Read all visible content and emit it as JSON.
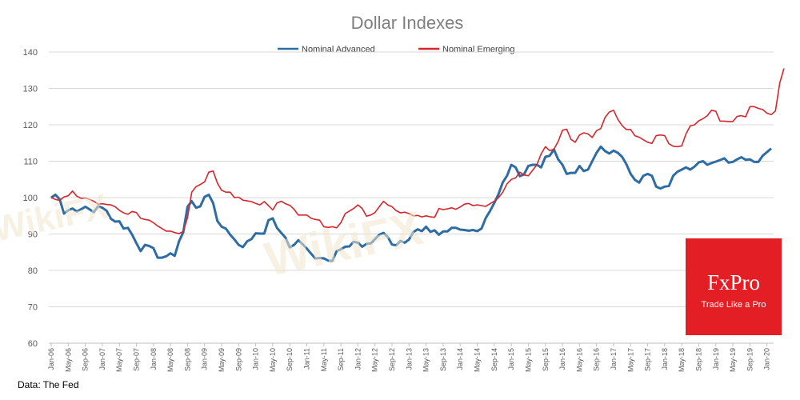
{
  "source_note": "Data: The Fed",
  "brand": {
    "logo_text": "FxPro",
    "tagline": "Trade Like a Pro",
    "color": "#e31e24"
  },
  "watermark": {
    "text": "WikiFX"
  },
  "chart_data": {
    "type": "line",
    "title": "Dollar Indexes",
    "xlabel": "",
    "ylabel": "",
    "ylim": [
      60,
      140
    ],
    "yticks": [
      60,
      70,
      80,
      90,
      100,
      110,
      120,
      130,
      140
    ],
    "grid": true,
    "legend": "top-center",
    "x_tick_labels": [
      "Jan-06",
      "May-06",
      "Sep-06",
      "Jan-07",
      "May-07",
      "Sep-07",
      "Jan-08",
      "May-08",
      "Sep-08",
      "Jan-09",
      "May-09",
      "Sep-09",
      "Jan-10",
      "May-10",
      "Sep-10",
      "Jan-11",
      "May-11",
      "Sep-11",
      "Jan-12",
      "May-12",
      "Sep-12",
      "Jan-13",
      "May-13",
      "Sep-13",
      "Jan-14",
      "May-14",
      "Sep-14",
      "Jan-15",
      "May-15",
      "Sep-15",
      "Jan-16",
      "May-16",
      "Sep-16",
      "Jan-17",
      "May-17",
      "Sep-17",
      "Jan-18",
      "May-18",
      "Sep-18",
      "Jan-19",
      "May-19",
      "Sep-19",
      "Jan-20"
    ],
    "series": [
      {
        "name": "Nominal Advanced",
        "color": "#2e6ca4",
        "values": [
          100,
          100.8,
          99.5,
          95.6,
          96.5,
          97.0,
          96.2,
          96.8,
          97.5,
          96.8,
          96.0,
          97.6,
          97.2,
          96.4,
          94.2,
          93.4,
          93.5,
          91.5,
          91.7,
          89.8,
          87.5,
          85.3,
          87.0,
          86.7,
          86.1,
          83.5,
          83.5,
          83.9,
          84.7,
          84.0,
          88.0,
          90.5,
          97.5,
          99.0,
          97.2,
          97.6,
          100.2,
          100.8,
          98.5,
          93.6,
          92.0,
          91.5,
          89.8,
          88.5,
          87.0,
          86.4,
          88.0,
          88.6,
          90.2,
          90.1,
          90.1,
          93.8,
          94.3,
          91.7,
          90.3,
          89.0,
          86.3,
          87.0,
          88.3,
          87.2,
          86.0,
          84.6,
          83.3,
          83.4,
          83.3,
          82.7,
          82.6,
          85.3,
          85.8,
          86.5,
          86.6,
          87.9,
          87.6,
          86.5,
          87.3,
          87.4,
          88.6,
          89.8,
          90.3,
          89.2,
          87.1,
          86.9,
          88.1,
          87.6,
          88.5,
          90.5,
          91.3,
          90.8,
          92.0,
          90.6,
          91.0,
          89.8,
          90.7,
          90.7,
          91.7,
          91.7,
          91.2,
          91.1,
          90.9,
          91.1,
          90.8,
          91.5,
          94.4,
          96.3,
          98.5,
          101.0,
          104.2,
          106.0,
          109.0,
          108.3,
          105.9,
          106.4,
          108.7,
          109.0,
          109.0,
          108.3,
          111.2,
          111.5,
          113.2,
          110.5,
          109.0,
          106.5,
          106.8,
          106.8,
          108.7,
          107.3,
          107.7,
          110.0,
          112.3,
          114.0,
          112.8,
          112.1,
          112.9,
          112.3,
          111.2,
          109.2,
          106.5,
          104.9,
          104.1,
          106.0,
          106.5,
          106.0,
          103.0,
          102.5,
          103.0,
          103.2,
          106.0,
          107.1,
          107.7,
          108.3,
          107.7,
          108.5,
          109.7,
          110.0,
          109.0,
          109.5,
          109.9,
          110.3,
          110.8,
          109.6,
          109.8,
          110.5,
          111.1,
          110.4,
          110.5,
          109.8,
          109.8,
          111.5,
          112.5,
          113.5
        ]
      },
      {
        "name": "Nominal Emerging",
        "color": "#d7262e",
        "values": [
          100,
          99.5,
          99.2,
          100.2,
          100.5,
          101.8,
          100.4,
          99.8,
          99.9,
          99.5,
          99.0,
          98.2,
          98.3,
          98.1,
          98.0,
          97.5,
          96.5,
          95.8,
          95.4,
          96.2,
          95.9,
          94.3,
          94.0,
          93.8,
          93.1,
          92.2,
          91.5,
          90.8,
          90.8,
          90.4,
          90.1,
          90.7,
          94.5,
          101.5,
          103.0,
          103.6,
          104.3,
          107.0,
          107.3,
          104.0,
          102.0,
          101.5,
          101.5,
          100.0,
          100.1,
          99.3,
          99.1,
          98.9,
          98.4,
          98.0,
          98.9,
          97.8,
          96.6,
          98.5,
          99.0,
          98.3,
          97.9,
          96.8,
          95.2,
          95.2,
          95.2,
          94.3,
          94.0,
          93.8,
          92.0,
          91.8,
          92.0,
          91.7,
          93.1,
          95.6,
          96.3,
          97.0,
          98.0,
          97.0,
          94.9,
          95.2,
          95.9,
          97.5,
          99.0,
          98.0,
          97.5,
          96.4,
          95.8,
          96.0,
          95.6,
          95.0,
          95.1,
          94.7,
          95.0,
          94.7,
          94.6,
          97.0,
          96.7,
          96.9,
          97.2,
          96.8,
          97.4,
          98.2,
          98.4,
          97.8,
          98.0,
          97.8,
          97.6,
          98.3,
          99.0,
          100.0,
          101.5,
          103.8,
          105.0,
          105.4,
          107.0,
          106.2,
          106.0,
          107.5,
          109.0,
          112.0,
          114.0,
          112.9,
          113.3,
          115.4,
          118.5,
          118.8,
          116.0,
          115.2,
          117.2,
          117.8,
          117.5,
          116.5,
          118.4,
          119.0,
          122.0,
          123.5,
          124.0,
          121.5,
          119.8,
          118.7,
          118.7,
          117.0,
          116.6,
          115.9,
          115.2,
          114.9,
          117.0,
          117.2,
          117.0,
          114.8,
          114.1,
          114.0,
          114.2,
          117.5,
          119.7,
          120.0,
          121.1,
          121.7,
          122.5,
          124.0,
          123.7,
          121.0,
          121.0,
          120.9,
          120.9,
          122.3,
          122.5,
          122.2,
          125.0,
          125.0,
          124.5,
          124.2,
          123.2,
          122.8,
          123.8,
          131.5,
          135.5
        ]
      }
    ]
  }
}
